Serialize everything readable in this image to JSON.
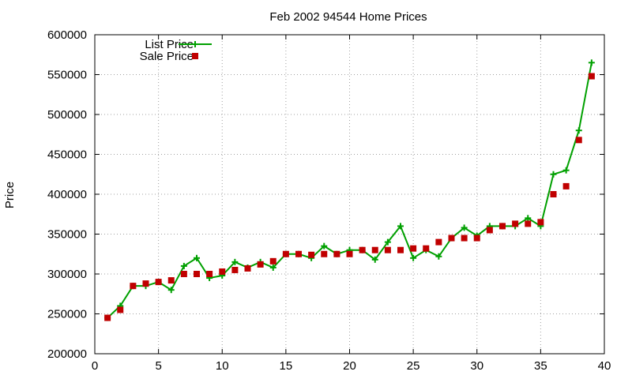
{
  "chart_data": {
    "type": "line",
    "title": "Feb 2002 94544 Home Prices",
    "ylabel": "Price",
    "xlabel": "",
    "xlim": [
      0,
      40
    ],
    "ylim": [
      200000,
      600000
    ],
    "xticks": [
      0,
      5,
      10,
      15,
      20,
      25,
      30,
      35,
      40
    ],
    "yticks": [
      200000,
      250000,
      300000,
      350000,
      400000,
      450000,
      500000,
      550000,
      600000
    ],
    "grid": true,
    "legend_position": "top-left",
    "x": [
      1,
      2,
      3,
      4,
      5,
      6,
      7,
      8,
      9,
      10,
      11,
      12,
      13,
      14,
      15,
      16,
      17,
      18,
      19,
      20,
      21,
      22,
      23,
      24,
      25,
      26,
      27,
      28,
      29,
      30,
      31,
      32,
      33,
      34,
      35,
      36,
      37,
      38,
      39
    ],
    "series": [
      {
        "name": "List Price",
        "style": "line-plus",
        "color": "#00a000",
        "values": [
          245000,
          260000,
          285000,
          285000,
          290000,
          280000,
          310000,
          320000,
          295000,
          298000,
          315000,
          308000,
          315000,
          308000,
          325000,
          325000,
          320000,
          335000,
          325000,
          330000,
          330000,
          318000,
          340000,
          360000,
          320000,
          330000,
          322000,
          345000,
          358000,
          348000,
          360000,
          360000,
          360000,
          370000,
          360000,
          425000,
          430000,
          480000,
          565000
        ]
      },
      {
        "name": "Sale Price",
        "style": "square-points",
        "color": "#c00000",
        "values": [
          245000,
          255000,
          285000,
          288000,
          290000,
          292000,
          300000,
          300000,
          300000,
          303000,
          305000,
          307000,
          312000,
          316000,
          325000,
          325000,
          324000,
          325000,
          325000,
          325000,
          330000,
          330000,
          330000,
          330000,
          332000,
          332000,
          340000,
          345000,
          345000,
          345000,
          355000,
          360000,
          363000,
          363000,
          365000,
          400000,
          410000,
          468000,
          548000
        ]
      }
    ]
  }
}
